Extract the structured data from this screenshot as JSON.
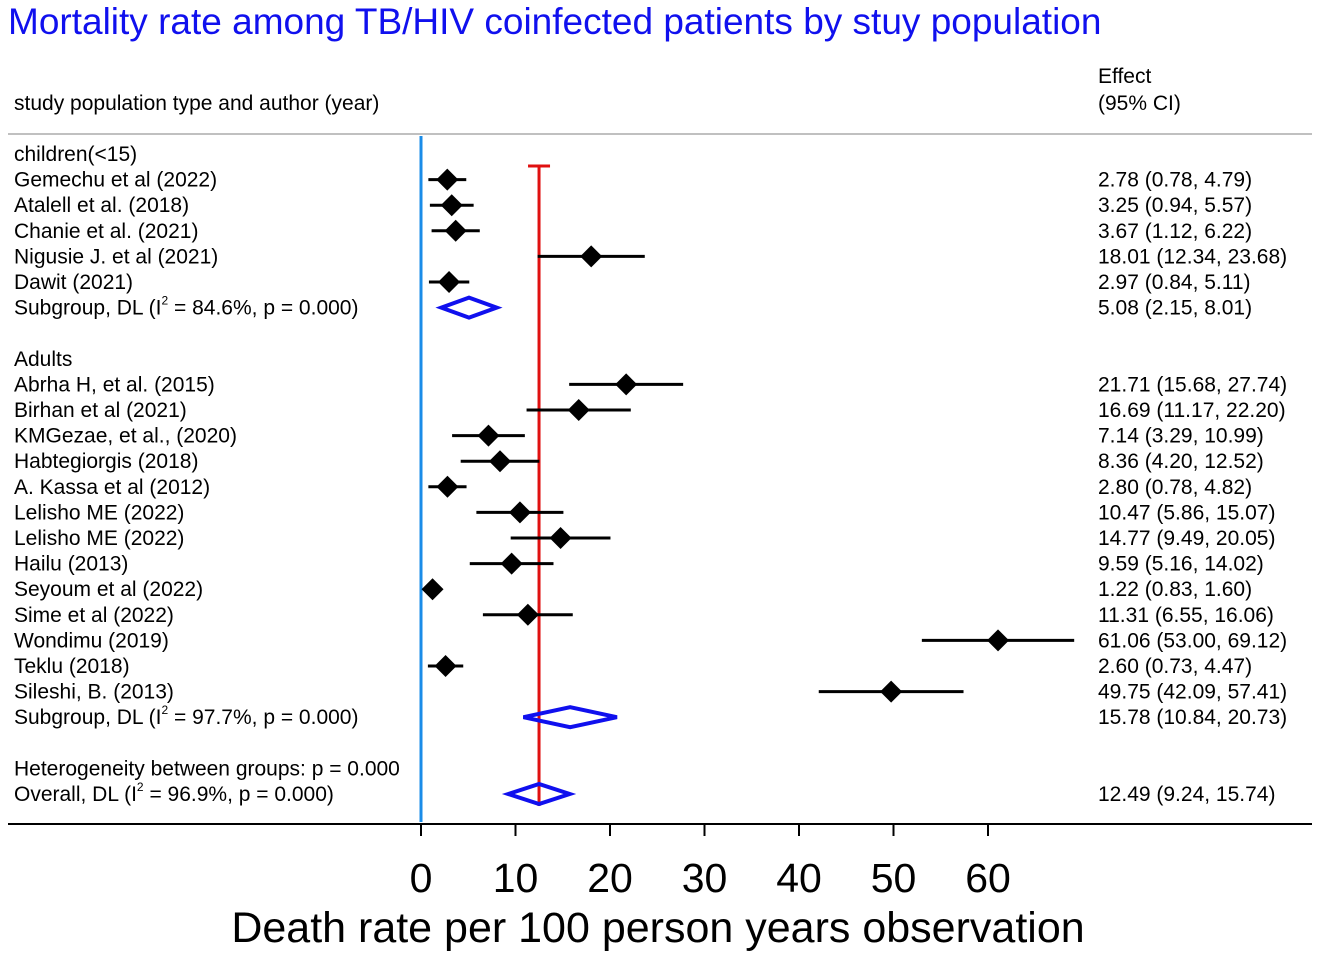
{
  "chart_data": {
    "type": "forest",
    "title": "Mortality rate among TB/HIV coinfected patients by stuy population",
    "column_headers": {
      "study": "study population type and author (year)",
      "effect_line1": "Effect",
      "effect_line2": "(95% CI)"
    },
    "xlabel": "Death rate per 100 person years observation",
    "xlim": [
      0,
      70
    ],
    "xticks": [
      0,
      10,
      20,
      30,
      40,
      50,
      60
    ],
    "null_line": 0,
    "overall_line": 12.49,
    "rows": [
      {
        "kind": "header",
        "label": "children(<15)"
      },
      {
        "kind": "study",
        "label": "Gemechu et al (2022)",
        "est": 2.78,
        "lo": 0.78,
        "hi": 4.79,
        "text": "2.78 (0.78, 4.79)"
      },
      {
        "kind": "study",
        "label": "Atalell et al.  (2018)",
        "est": 3.25,
        "lo": 0.94,
        "hi": 5.57,
        "text": "3.25 (0.94, 5.57)"
      },
      {
        "kind": "study",
        "label": "Chanie et al. (2021)",
        "est": 3.67,
        "lo": 1.12,
        "hi": 6.22,
        "text": "3.67 (1.12, 6.22)"
      },
      {
        "kind": "study",
        "label": "Nigusie J. et al (2021)",
        "est": 18.01,
        "lo": 12.34,
        "hi": 23.68,
        "text": "18.01 (12.34, 23.68)"
      },
      {
        "kind": "study",
        "label": "Dawit (2021)",
        "est": 2.97,
        "lo": 0.84,
        "hi": 5.11,
        "text": "2.97 (0.84, 5.11)"
      },
      {
        "kind": "subgroup",
        "label_pre": "Subgroup, DL (I",
        "label_sup": "2",
        "label_post": " = 84.6%, p = 0.000)",
        "est": 5.08,
        "lo": 2.15,
        "hi": 8.01,
        "text": "5.08 (2.15, 8.01)"
      },
      {
        "kind": "blank"
      },
      {
        "kind": "header",
        "label": "Adults"
      },
      {
        "kind": "study",
        "label": "Abrha H, et al. (2015)",
        "est": 21.71,
        "lo": 15.68,
        "hi": 27.74,
        "text": "21.71 (15.68, 27.74)"
      },
      {
        "kind": "study",
        "label": "Birhan et al (2021)",
        "est": 16.69,
        "lo": 11.17,
        "hi": 22.2,
        "text": "16.69 (11.17, 22.20)"
      },
      {
        "kind": "study",
        "label": "KMGezae, et al., (2020)",
        "est": 7.14,
        "lo": 3.29,
        "hi": 10.99,
        "text": "7.14 (3.29, 10.99)"
      },
      {
        "kind": "study",
        "label": "Habtegiorgis (2018)",
        "est": 8.36,
        "lo": 4.2,
        "hi": 12.52,
        "text": "8.36 (4.20, 12.52)"
      },
      {
        "kind": "study",
        "label": "A. Kassa et al (2012)",
        "est": 2.8,
        "lo": 0.78,
        "hi": 4.82,
        "text": "2.80 (0.78, 4.82)"
      },
      {
        "kind": "study",
        "label": "Lelisho ME (2022)",
        "est": 10.47,
        "lo": 5.86,
        "hi": 15.07,
        "text": "10.47 (5.86, 15.07)"
      },
      {
        "kind": "study",
        "label": "Lelisho ME (2022)",
        "est": 14.77,
        "lo": 9.49,
        "hi": 20.05,
        "text": "14.77 (9.49, 20.05)"
      },
      {
        "kind": "study",
        "label": "Hailu (2013)",
        "est": 9.59,
        "lo": 5.16,
        "hi": 14.02,
        "text": "9.59 (5.16, 14.02)"
      },
      {
        "kind": "study",
        "label": "Seyoum et al (2022)",
        "est": 1.22,
        "lo": 0.83,
        "hi": 1.6,
        "text": "1.22 (0.83, 1.60)"
      },
      {
        "kind": "study",
        "label": "Sime et al (2022)",
        "est": 11.31,
        "lo": 6.55,
        "hi": 16.06,
        "text": "11.31 (6.55, 16.06)"
      },
      {
        "kind": "study",
        "label": "Wondimu (2019)",
        "est": 61.06,
        "lo": 53.0,
        "hi": 69.12,
        "text": "61.06 (53.00, 69.12)"
      },
      {
        "kind": "study",
        "label": "Teklu (2018)",
        "est": 2.6,
        "lo": 0.73,
        "hi": 4.47,
        "text": "2.60 (0.73, 4.47)"
      },
      {
        "kind": "study",
        "label": "Sileshi, B. (2013)",
        "est": 49.75,
        "lo": 42.09,
        "hi": 57.41,
        "text": "49.75 (42.09, 57.41)"
      },
      {
        "kind": "subgroup",
        "label_pre": "Subgroup, DL (I",
        "label_sup": "2",
        "label_post": " = 97.7%, p = 0.000)",
        "est": 15.78,
        "lo": 10.84,
        "hi": 20.73,
        "text": "15.78 (10.84, 20.73)"
      },
      {
        "kind": "blank"
      },
      {
        "kind": "note",
        "label": "Heterogeneity between groups: p = 0.000"
      },
      {
        "kind": "overall",
        "label_pre": "Overall, DL (I",
        "label_sup": "2",
        "label_post": " = 96.9%, p = 0.000)",
        "est": 12.49,
        "lo": 9.24,
        "hi": 15.74,
        "text": "12.49 (9.24, 15.74)"
      }
    ],
    "colors": {
      "title": "#1010ee",
      "null_line": "#1a8ce8",
      "overall_line": "#e01010",
      "diamond": "#1010ee",
      "marker": "#000000",
      "divider": "#c0c0c0"
    }
  }
}
